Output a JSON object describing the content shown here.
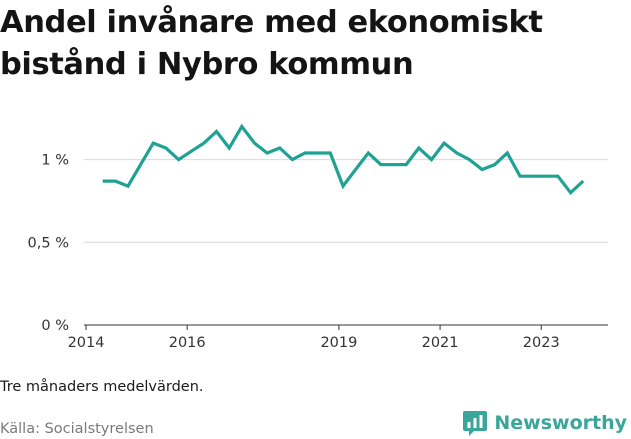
{
  "title": "Andel invånare med ekonomiskt bistånd i Nybro kommun",
  "note": "Tre månaders medelvärden.",
  "source": "Källa: Socialstyrelsen",
  "brand": {
    "name": "Newsworthy",
    "icon": "newsworthy-chart-icon",
    "color": "#3aa69b"
  },
  "chart_data": {
    "type": "line",
    "title": "Andel invånare med ekonomiskt bistånd i Nybro kommun",
    "xlabel": "",
    "ylabel": "",
    "x_range": [
      2013.96,
      2024.32
    ],
    "ylim": [
      0,
      1.3
    ],
    "y_ticks": [
      {
        "value": 0,
        "label": "0 %"
      },
      {
        "value": 0.5,
        "label": "0,5 %"
      },
      {
        "value": 1,
        "label": "1 %"
      }
    ],
    "x_ticks": [
      {
        "value": 2014,
        "label": "2014"
      },
      {
        "value": 2016,
        "label": "2016"
      },
      {
        "value": 2019,
        "label": "2019"
      },
      {
        "value": 2021,
        "label": "2021"
      },
      {
        "value": 2023,
        "label": "2023"
      }
    ],
    "grid": true,
    "legend": "none",
    "line_color": "#1fa293",
    "series": [
      {
        "x": [
          2014.33,
          2014.58,
          2014.83,
          2015.08,
          2015.33,
          2015.58,
          2015.83,
          2016.08,
          2016.33,
          2016.58,
          2016.83,
          2017.08,
          2017.33,
          2017.58,
          2017.83,
          2018.08,
          2018.33,
          2018.58,
          2018.83,
          2019.08,
          2019.33,
          2019.58,
          2019.83,
          2020.08,
          2020.33,
          2020.58,
          2020.83,
          2021.08,
          2021.33,
          2021.58,
          2021.83,
          2022.08,
          2022.33,
          2022.58,
          2022.83,
          2023.08,
          2023.33,
          2023.58,
          2023.83
        ],
        "values": [
          0.87,
          0.87,
          0.84,
          0.97,
          1.1,
          1.07,
          1.0,
          1.05,
          1.1,
          1.17,
          1.07,
          1.2,
          1.1,
          1.04,
          1.07,
          1.0,
          1.04,
          1.04,
          1.04,
          0.84,
          0.94,
          1.04,
          0.97,
          0.97,
          0.97,
          1.07,
          1.0,
          1.1,
          1.04,
          1.0,
          0.94,
          0.97,
          1.04,
          0.9,
          0.9,
          0.9,
          0.9,
          0.8,
          0.87
        ]
      }
    ]
  }
}
